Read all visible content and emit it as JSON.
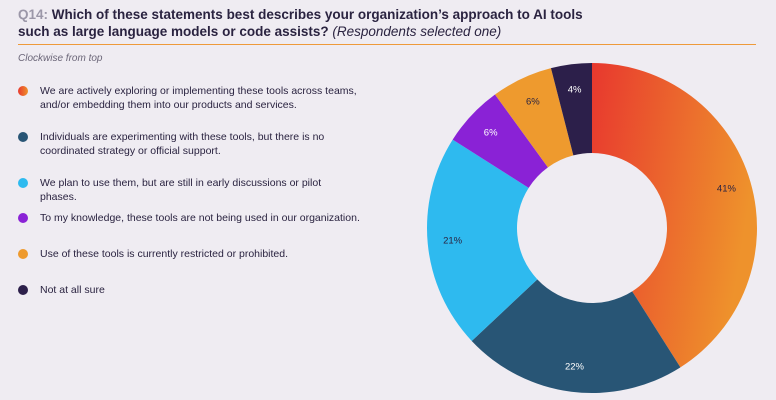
{
  "chart_data": {
    "type": "donut",
    "question_number": "Q14:",
    "title": "Which of these statements best describes your organization’s approach to AI tools such as large language models or code assists?",
    "title_note": "(Respondents selected one)",
    "subtitle": "Clockwise from top",
    "categories": [
      "We are actively exploring or implementing these tools across teams, and/or embedding them into our products and services.",
      "Individuals are experimenting with these tools, but there is no coordinated strategy or official support.",
      "We plan to use them, but are still in early discussions or pilot phases.",
      "To my knowledge, these tools are not being used in our organization.",
      "Use of these tools is currently restricted or prohibited.",
      "Not at all sure"
    ],
    "values": [
      41,
      22,
      21,
      6,
      6,
      4
    ],
    "value_labels": [
      "41%",
      "22%",
      "21%",
      "6%",
      "6%",
      "4%"
    ],
    "colors": [
      "#e8422e",
      "#285575",
      "#2ebaef",
      "#8a22d6",
      "#ee9a2e",
      "#2c1f4a"
    ],
    "first_gradient": [
      "#e8382e",
      "#ee922c"
    ],
    "label_colors": [
      "#2a2340",
      "#ffffff",
      "#2a2340",
      "#ffffff",
      "#2a2340",
      "#ffffff"
    ]
  }
}
